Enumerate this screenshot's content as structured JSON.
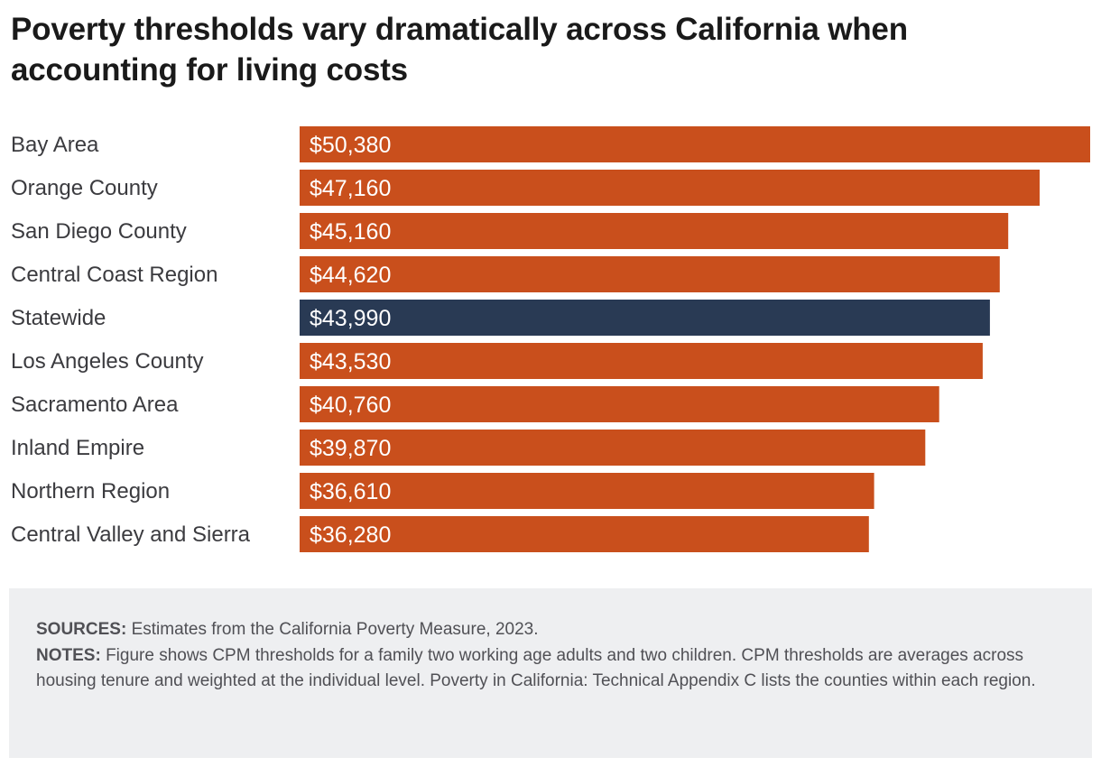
{
  "title": "Poverty thresholds vary dramatically across California when accounting for living costs",
  "colors": {
    "bar": "#c94f1c",
    "highlight": "#293a54",
    "label_text": "#3b3b3f",
    "value_text": "#ffffff"
  },
  "chart_data": {
    "type": "bar",
    "orientation": "horizontal",
    "categories": [
      "Bay Area",
      "Orange County",
      "San Diego County",
      "Central Coast Region",
      "Statewide",
      "Los Angeles County",
      "Sacramento Area",
      "Inland Empire",
      "Northern Region",
      "Central Valley and Sierra"
    ],
    "values": [
      50380,
      47160,
      45160,
      44620,
      43990,
      43530,
      40760,
      39870,
      36610,
      36280
    ],
    "value_labels": [
      "$50,380",
      "$47,160",
      "$45,160",
      "$44,620",
      "$43,990",
      "$43,530",
      "$40,760",
      "$39,870",
      "$36,610",
      "$36,280"
    ],
    "highlight": "Statewide",
    "xlim": [
      0,
      50380
    ],
    "grid": false
  },
  "notes": {
    "sources_label": "SOURCES:",
    "sources_text": "Estimates from the California Poverty Measure, 2023.",
    "notes_label": "NOTES:",
    "notes_text": "Figure shows CPM thresholds for a family two working age adults and two children. CPM thresholds are averages across housing tenure and weighted at the individual level. Poverty in California: Technical Appendix C lists the counties within each region."
  }
}
